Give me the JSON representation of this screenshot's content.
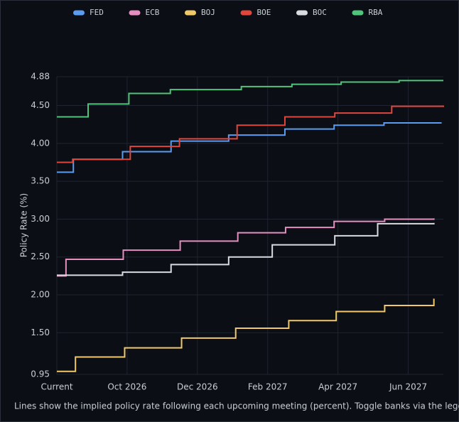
{
  "chart_data": {
    "type": "line",
    "line_shape": "step",
    "ylabel": "Policy Rate (%)",
    "caption": "Lines show the implied policy rate following each upcoming meeting (percent). Toggle banks via the legend.",
    "xlim": [
      0,
      11
    ],
    "xticks": [
      {
        "value": 0,
        "label": "Current"
      },
      {
        "value": 2,
        "label": "Oct 2026"
      },
      {
        "value": 4,
        "label": "Dec 2026"
      },
      {
        "value": 6,
        "label": "Feb 2027"
      },
      {
        "value": 8,
        "label": "Apr 2027"
      },
      {
        "value": 10,
        "label": "Jun 2027"
      }
    ],
    "ylim": [
      0.95,
      4.88
    ],
    "yticks": [
      0.95,
      {
        "value": 1.5,
        "label": "1.50"
      },
      {
        "value": 2,
        "label": "2.00"
      },
      {
        "value": 2.5,
        "label": "2.50"
      },
      {
        "value": 3,
        "label": "3.00"
      },
      {
        "value": 3.5,
        "label": "3.50"
      },
      {
        "value": 4,
        "label": "4.00"
      },
      {
        "value": 4.5,
        "label": "4.50"
      },
      4.88
    ],
    "grid": true,
    "legend": "top",
    "series": [
      {
        "name": "FED",
        "color": "#5b9cf0",
        "x": [
          0,
          0.47,
          1.87,
          3.25,
          4.89,
          6.49,
          7.89,
          9.31,
          10.93
        ],
        "values": [
          3.62,
          3.79,
          3.89,
          4.03,
          4.11,
          4.19,
          4.24,
          4.27,
          4.28
        ]
      },
      {
        "name": "ECB",
        "color": "#e48fbf",
        "x": [
          0,
          0.26,
          1.89,
          3.51,
          5.15,
          6.51,
          7.89,
          9.33,
          10.73
        ],
        "values": [
          2.25,
          2.47,
          2.59,
          2.71,
          2.82,
          2.89,
          2.97,
          3.0,
          3.01
        ]
      },
      {
        "name": "BOJ",
        "color": "#f0c869",
        "x": [
          0,
          0.53,
          1.93,
          3.55,
          5.09,
          6.6,
          7.95,
          9.33,
          10.73
        ],
        "values": [
          0.99,
          1.18,
          1.3,
          1.43,
          1.56,
          1.66,
          1.78,
          1.86,
          1.95
        ]
      },
      {
        "name": "BOE",
        "color": "#e0463c",
        "x": [
          0,
          0.45,
          2.09,
          3.49,
          5.13,
          6.49,
          7.91,
          9.53,
          11
        ],
        "values": [
          3.75,
          3.79,
          3.96,
          4.06,
          4.24,
          4.35,
          4.4,
          4.49,
          4.5
        ]
      },
      {
        "name": "BOC",
        "color": "#d8dbe0",
        "x": [
          0,
          1.87,
          3.25,
          4.89,
          6.13,
          7.91,
          9.13,
          10.73
        ],
        "values": [
          2.26,
          2.3,
          2.4,
          2.5,
          2.66,
          2.78,
          2.94,
          2.95
        ]
      },
      {
        "name": "RBA",
        "color": "#4fc47a",
        "x": [
          0,
          0.89,
          2.05,
          3.23,
          5.25,
          6.69,
          8.09,
          9.74,
          11
        ],
        "values": [
          4.35,
          4.52,
          4.66,
          4.71,
          4.75,
          4.78,
          4.81,
          4.83,
          4.83
        ]
      }
    ]
  }
}
